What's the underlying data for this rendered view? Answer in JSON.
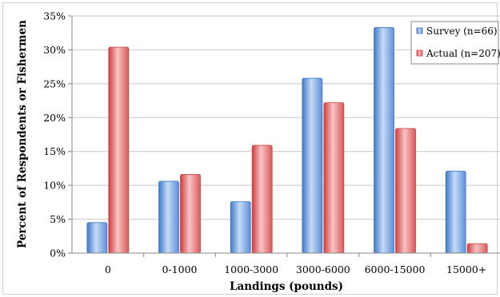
{
  "chart_data": {
    "type": "bar",
    "title": "",
    "xlabel": "Landings (pounds)",
    "ylabel": "Percent of Respondents or Fishermen",
    "categories": [
      "0",
      "0-1000",
      "1000-3000",
      "3000-6000",
      "6000-15000",
      "15000+"
    ],
    "series": [
      {
        "name": "Survey (n=66)",
        "values": [
          4.5,
          10.6,
          7.6,
          25.8,
          33.3,
          12.1
        ]
      },
      {
        "name": "Actual (n=207)",
        "values": [
          30.4,
          11.6,
          15.9,
          22.2,
          18.4,
          1.4
        ]
      }
    ],
    "ylim": [
      0,
      35
    ],
    "yticks": [
      0,
      5,
      10,
      15,
      20,
      25,
      30,
      35
    ],
    "ytick_labels": [
      "0%",
      "5%",
      "10%",
      "15%",
      "20%",
      "25%",
      "30%",
      "35%"
    ],
    "grid": true,
    "legend_position": "top-right",
    "colors": {
      "survey_dark": "#3f79c9",
      "survey_light": "#c6dcf6",
      "actual_dark": "#d03e3e",
      "actual_light": "#f8c4c4"
    }
  }
}
